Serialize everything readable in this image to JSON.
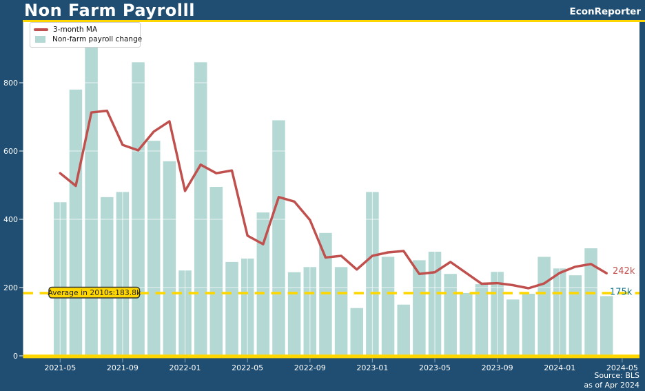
{
  "header": {
    "title": "Non Farm Payrolll",
    "brand": "EconReporter"
  },
  "legend": {
    "ma_label": "3-month MA",
    "bars_label": "Non-farm payroll change"
  },
  "annotations": {
    "ma_end_label": "242k",
    "last_bar_label": "175k",
    "average_box_label": "Average in 2010s:183.8k"
  },
  "source": {
    "line1": "Source: BLS",
    "line2": "as of Apr 2024"
  },
  "colors": {
    "background": "#1F4E72",
    "bar": "#B4D8D4",
    "ma_line": "#C0504D",
    "accent_yellow": "#FFD700",
    "teal_text": "#19788C",
    "plot_bg": "#FFFFFF",
    "grid_over_bars": "rgba(255,255,255,0.6)",
    "tick_label": "#FFFFFF",
    "axis_tick": "rgba(255,255,255,0.4)",
    "avg_box_border": "#333333",
    "avg_box_text": "#222222"
  },
  "chart_data": {
    "type": "bar+line",
    "title": "Non Farm Payrolll",
    "xlabel": "",
    "ylabel": "",
    "ylim": [
      0,
      980
    ],
    "grid": true,
    "legend_position": "upper-left",
    "months": [
      "2021-05",
      "2021-06",
      "2021-07",
      "2021-08",
      "2021-09",
      "2021-10",
      "2021-11",
      "2021-12",
      "2022-01",
      "2022-02",
      "2022-03",
      "2022-04",
      "2022-05",
      "2022-06",
      "2022-07",
      "2022-08",
      "2022-09",
      "2022-10",
      "2022-11",
      "2022-12",
      "2023-01",
      "2023-02",
      "2023-03",
      "2023-04",
      "2023-05",
      "2023-06",
      "2023-07",
      "2023-08",
      "2023-09",
      "2023-10",
      "2023-11",
      "2023-12",
      "2024-01",
      "2024-02",
      "2024-03",
      "2024-04"
    ],
    "series": [
      {
        "name": "Non-farm payroll change",
        "type": "bar",
        "unit": "thousands",
        "values": [
          450,
          780,
          910,
          465,
          480,
          860,
          630,
          570,
          250,
          860,
          495,
          275,
          285,
          420,
          690,
          245,
          260,
          360,
          260,
          140,
          480,
          290,
          150,
          280,
          305,
          240,
          184,
          210,
          246,
          165,
          182,
          290,
          256,
          236,
          315,
          175
        ]
      },
      {
        "name": "3-month MA",
        "type": "line",
        "unit": "thousands",
        "values": [
          535,
          498,
          713,
          718,
          618,
          602,
          657,
          687,
          483,
          560,
          535,
          543,
          352,
          327,
          465,
          452,
          398,
          288,
          293,
          253,
          293,
          303,
          307,
          240,
          245,
          275,
          243,
          211,
          213,
          207,
          198,
          212,
          243,
          261,
          269,
          242
        ]
      }
    ],
    "yticks": [
      0,
      200,
      400,
      600,
      800
    ],
    "xticks": [
      "2021-05",
      "2021-09",
      "2022-01",
      "2022-05",
      "2022-09",
      "2023-01",
      "2023-05",
      "2023-09",
      "2024-01",
      "2024-05"
    ],
    "average_line_value": 183.8,
    "ma_end_value": 242,
    "last_bar_value": 175
  }
}
